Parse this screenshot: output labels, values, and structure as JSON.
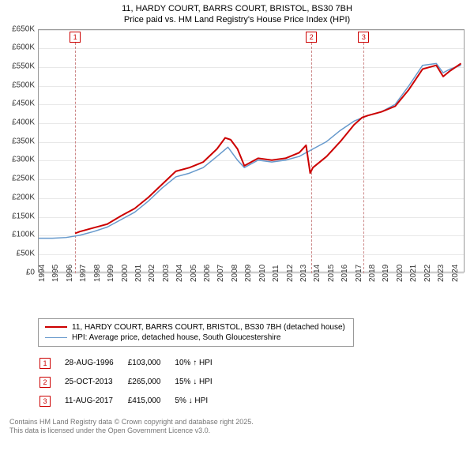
{
  "title_line1": "11, HARDY COURT, BARRS COURT, BRISTOL, BS30 7BH",
  "title_line2": "Price paid vs. HM Land Registry's House Price Index (HPI)",
  "chart": {
    "type": "line",
    "x_years": [
      1994,
      1995,
      1996,
      1997,
      1998,
      1999,
      2000,
      2001,
      2002,
      2003,
      2004,
      2005,
      2006,
      2007,
      2008,
      2009,
      2010,
      2011,
      2012,
      2013,
      2014,
      2015,
      2016,
      2017,
      2018,
      2019,
      2020,
      2021,
      2022,
      2023,
      2024
    ],
    "y_ticks": [
      0,
      50,
      100,
      150,
      200,
      250,
      300,
      350,
      400,
      450,
      500,
      550,
      600,
      650
    ],
    "y_tick_labels": [
      "£0",
      "£50K",
      "£100K",
      "£150K",
      "£200K",
      "£250K",
      "£300K",
      "£350K",
      "£400K",
      "£450K",
      "£500K",
      "£550K",
      "£600K",
      "£650K"
    ],
    "ylim": [
      0,
      650
    ],
    "xlim": [
      1994,
      2025
    ],
    "grid_color": "#e8e8e8",
    "background": "#ffffff",
    "series": [
      {
        "name": "11, HARDY COURT, BARRS COURT, BRISTOL, BS30 7BH (detached house)",
        "color": "#cc0000",
        "width": 2,
        "points": [
          [
            1996.65,
            103
          ],
          [
            1997,
            108
          ],
          [
            1998,
            118
          ],
          [
            1999,
            128
          ],
          [
            2000,
            150
          ],
          [
            2001,
            170
          ],
          [
            2002,
            200
          ],
          [
            2003,
            235
          ],
          [
            2004,
            270
          ],
          [
            2005,
            280
          ],
          [
            2006,
            295
          ],
          [
            2007,
            330
          ],
          [
            2007.6,
            360
          ],
          [
            2008,
            355
          ],
          [
            2008.5,
            330
          ],
          [
            2009,
            285
          ],
          [
            2010,
            305
          ],
          [
            2011,
            300
          ],
          [
            2012,
            305
          ],
          [
            2013,
            320
          ],
          [
            2013.5,
            340
          ],
          [
            2013.8,
            265
          ],
          [
            2014,
            280
          ],
          [
            2015,
            310
          ],
          [
            2016,
            350
          ],
          [
            2017,
            395
          ],
          [
            2017.6,
            415
          ],
          [
            2018,
            420
          ],
          [
            2019,
            430
          ],
          [
            2020,
            445
          ],
          [
            2021,
            490
          ],
          [
            2022,
            545
          ],
          [
            2023,
            555
          ],
          [
            2023.5,
            525
          ],
          [
            2024,
            540
          ],
          [
            2024.8,
            560
          ]
        ]
      },
      {
        "name": "HPI: Average price, detached house, South Gloucestershire",
        "color": "#6699cc",
        "width": 1.5,
        "points": [
          [
            1994,
            90
          ],
          [
            1995,
            90
          ],
          [
            1996,
            92
          ],
          [
            1997,
            98
          ],
          [
            1998,
            108
          ],
          [
            1999,
            120
          ],
          [
            2000,
            140
          ],
          [
            2001,
            160
          ],
          [
            2002,
            190
          ],
          [
            2003,
            225
          ],
          [
            2004,
            255
          ],
          [
            2005,
            265
          ],
          [
            2006,
            280
          ],
          [
            2007,
            310
          ],
          [
            2007.8,
            335
          ],
          [
            2008.5,
            300
          ],
          [
            2009,
            280
          ],
          [
            2010,
            300
          ],
          [
            2011,
            295
          ],
          [
            2012,
            300
          ],
          [
            2013,
            310
          ],
          [
            2014,
            330
          ],
          [
            2015,
            350
          ],
          [
            2016,
            380
          ],
          [
            2017,
            405
          ],
          [
            2018,
            420
          ],
          [
            2019,
            430
          ],
          [
            2020,
            450
          ],
          [
            2021,
            500
          ],
          [
            2022,
            555
          ],
          [
            2023,
            560
          ],
          [
            2023.5,
            535
          ],
          [
            2024,
            545
          ],
          [
            2024.8,
            555
          ]
        ]
      }
    ],
    "markers": [
      {
        "id": "1",
        "x": 1996.65
      },
      {
        "id": "2",
        "x": 2013.82
      },
      {
        "id": "3",
        "x": 2017.62
      }
    ]
  },
  "legend": [
    {
      "color": "#cc0000",
      "width": 2,
      "label": "11, HARDY COURT, BARRS COURT, BRISTOL, BS30 7BH (detached house)"
    },
    {
      "color": "#6699cc",
      "width": 1.5,
      "label": "HPI: Average price, detached house, South Gloucestershire"
    }
  ],
  "events": [
    {
      "id": "1",
      "date": "28-AUG-1996",
      "price": "£103,000",
      "pct": "10% ↑ HPI"
    },
    {
      "id": "2",
      "date": "25-OCT-2013",
      "price": "£265,000",
      "pct": "15% ↓ HPI"
    },
    {
      "id": "3",
      "date": "11-AUG-2017",
      "price": "£415,000",
      "pct": "5% ↓ HPI"
    }
  ],
  "footer_line1": "Contains HM Land Registry data © Crown copyright and database right 2025.",
  "footer_line2": "This data is licensed under the Open Government Licence v3.0."
}
